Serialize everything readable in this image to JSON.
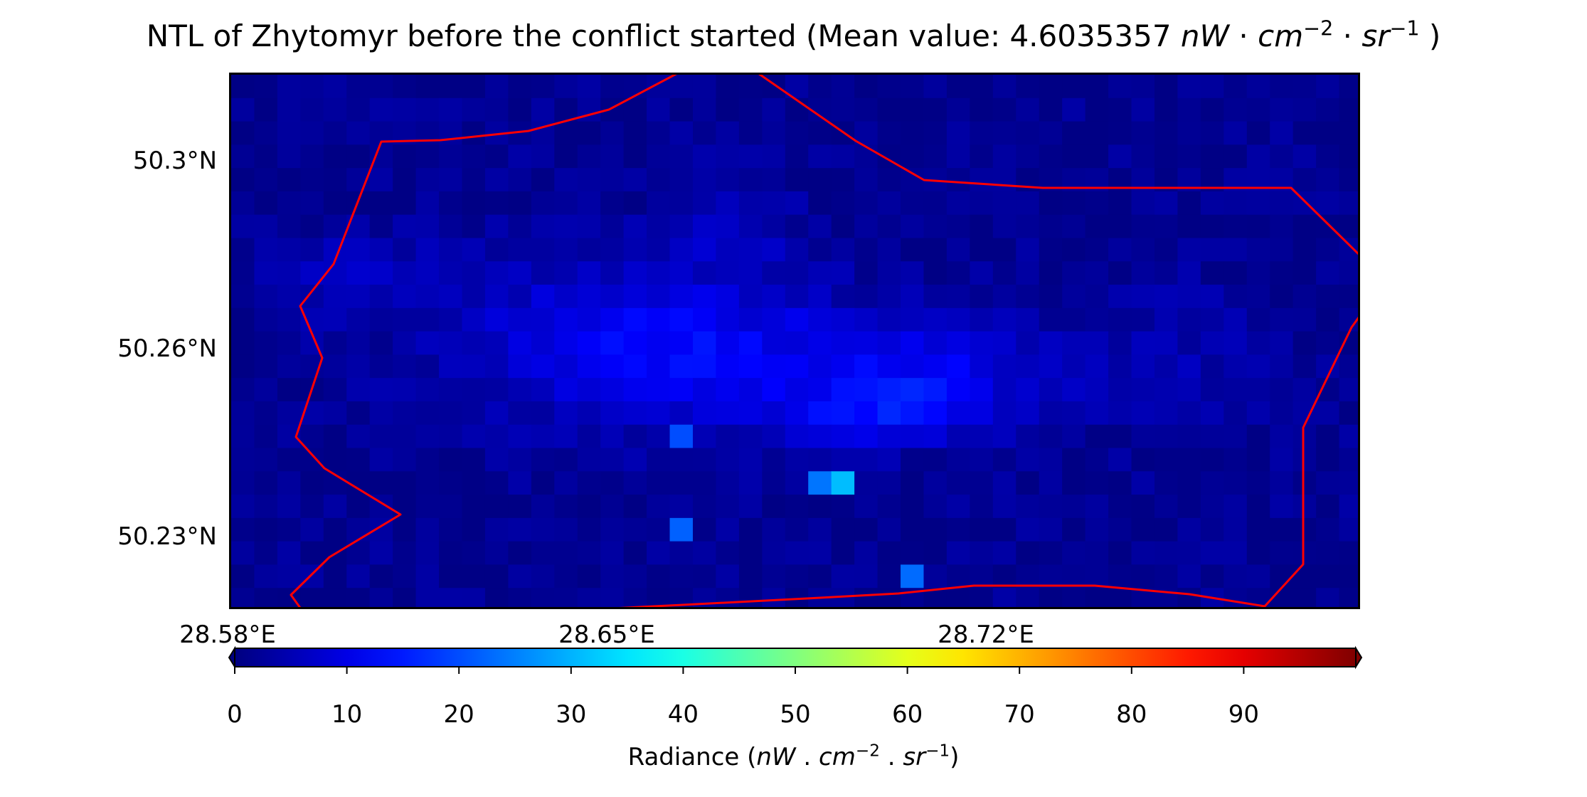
{
  "title": {
    "prefix": "NTL of Zhytomyr before the conflict started (Mean value: 4.6035357 ",
    "unit_nW": "nW",
    "unit_dot1": " · ",
    "unit_cm": "cm",
    "unit_cm_exp": "−2",
    "unit_dot2": " · ",
    "unit_sr": "sr",
    "unit_sr_exp": "−1",
    "suffix": " )"
  },
  "axes": {
    "y_ticks": [
      "50.3°N",
      "50.26°N",
      "50.23°N"
    ],
    "x_ticks": [
      "28.58°E",
      "28.65°E",
      "28.72°E"
    ],
    "boundary_color": "#ff0000"
  },
  "colorbar": {
    "ticks": [
      "0",
      "10",
      "20",
      "30",
      "40",
      "50",
      "60",
      "70",
      "80",
      "90"
    ],
    "colormap": "jet",
    "vmin": 0,
    "vmax": 100,
    "extend": "both",
    "label": {
      "prefix": "Radiance (",
      "unit_nW": "nW",
      "dot1": " . ",
      "unit_cm": "cm",
      "cm_exp": "−2",
      "dot2": " . ",
      "unit_sr": "sr",
      "sr_exp": "−1",
      "suffix": ")"
    }
  }
}
